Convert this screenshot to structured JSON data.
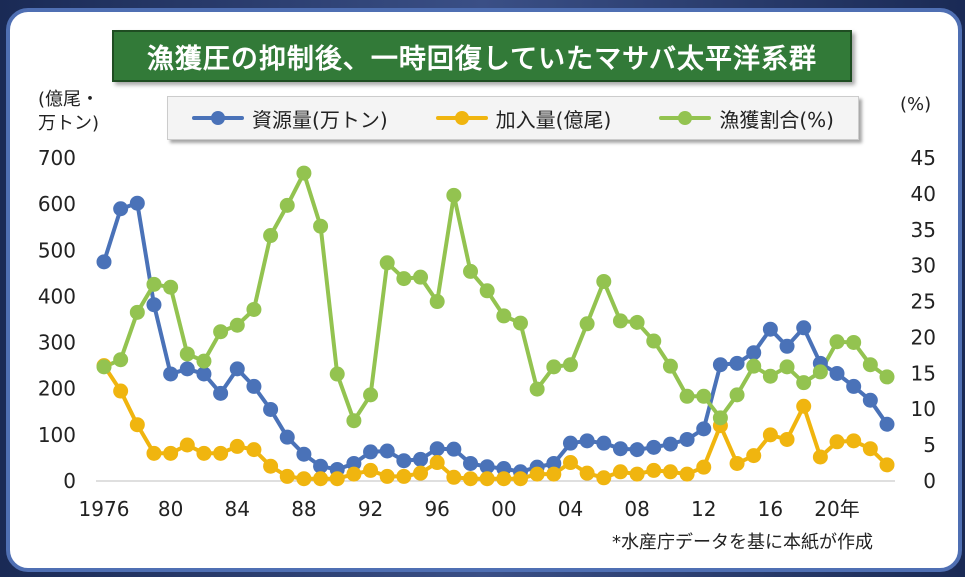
{
  "title": "漁獲圧の抑制後、一時回復していたマサバ太平洋系群",
  "left_axis_unit": [
    "(億尾・",
    "万トン)"
  ],
  "right_axis_unit": "(%)",
  "source_note": "*水産庁データを基に本紙が作成",
  "legend": [
    {
      "label": "資源量(万トン)",
      "color": "#4a72b8"
    },
    {
      "label": "加入量(億尾)",
      "color": "#f0b50f"
    },
    {
      "label": "漁獲割合(%)",
      "color": "#93c350"
    }
  ],
  "chart_data": {
    "type": "line",
    "title": "漁獲圧の抑制後、一時回復していたマサバ太平洋系群",
    "x": [
      1976,
      1977,
      1978,
      1979,
      1980,
      1981,
      1982,
      1983,
      1984,
      1985,
      1986,
      1987,
      1988,
      1989,
      1990,
      1991,
      1992,
      1993,
      1994,
      1995,
      1996,
      1997,
      1998,
      1999,
      2000,
      2001,
      2002,
      2003,
      2004,
      2005,
      2006,
      2007,
      2008,
      2009,
      2010,
      2011,
      2012,
      2013,
      2014,
      2015,
      2016,
      2017,
      2018,
      2019,
      2020,
      2021,
      2022,
      2023
    ],
    "x_tick_labels": [
      {
        "x": 1976,
        "label": "1976"
      },
      {
        "x": 1980,
        "label": "80"
      },
      {
        "x": 1984,
        "label": "84"
      },
      {
        "x": 1988,
        "label": "88"
      },
      {
        "x": 1992,
        "label": "92"
      },
      {
        "x": 1996,
        "label": "96"
      },
      {
        "x": 2000,
        "label": "00"
      },
      {
        "x": 2004,
        "label": "04"
      },
      {
        "x": 2008,
        "label": "08"
      },
      {
        "x": 2012,
        "label": "12"
      },
      {
        "x": 2016,
        "label": "16"
      },
      {
        "x": 2020,
        "label": "20年"
      }
    ],
    "y_left": {
      "range": [
        0,
        700
      ],
      "ticks": [
        0,
        100,
        200,
        300,
        400,
        500,
        600,
        700
      ]
    },
    "y_right": {
      "range": [
        0,
        45
      ],
      "ticks": [
        0,
        5,
        10,
        15,
        20,
        25,
        30,
        35,
        40,
        45
      ]
    },
    "grid": false,
    "series": [
      {
        "name": "資源量(万トン)",
        "axis": "left",
        "color": "#4a72b8",
        "values": [
          475,
          590,
          602,
          382,
          232,
          243,
          232,
          190,
          243,
          205,
          155,
          95,
          58,
          32,
          25,
          38,
          63,
          65,
          44,
          47,
          70,
          69,
          38,
          31,
          27,
          20,
          30,
          38,
          82,
          87,
          82,
          70,
          68,
          73,
          80,
          90,
          113,
          252,
          255,
          278,
          329,
          292,
          332,
          255,
          233,
          205,
          175,
          123
        ]
      },
      {
        "name": "加入量(億尾)",
        "axis": "left",
        "color": "#f0b50f",
        "values": [
          250,
          195,
          122,
          60,
          60,
          78,
          60,
          60,
          75,
          68,
          32,
          10,
          5,
          5,
          5,
          15,
          23,
          10,
          10,
          17,
          40,
          8,
          5,
          5,
          5,
          5,
          15,
          15,
          40,
          17,
          7,
          20,
          15,
          23,
          20,
          15,
          30,
          120,
          38,
          55,
          100,
          90,
          162,
          52,
          85,
          87,
          70,
          35
        ]
      },
      {
        "name": "漁獲割合(%)",
        "axis": "right",
        "color": "#93c350",
        "values": [
          15.9,
          16.9,
          23.5,
          27.4,
          27.0,
          17.7,
          16.7,
          20.8,
          21.7,
          23.9,
          34.2,
          38.4,
          42.9,
          35.5,
          14.9,
          8.4,
          12.0,
          30.4,
          28.2,
          28.4,
          25.0,
          39.8,
          29.2,
          26.5,
          23.0,
          22.0,
          12.8,
          15.9,
          16.2,
          21.9,
          27.8,
          22.3,
          22.1,
          19.5,
          16.0,
          11.8,
          11.8,
          8.8,
          12.0,
          16.0,
          14.6,
          15.9,
          13.7,
          15.2,
          19.4,
          19.3,
          16.2,
          14.5
        ]
      }
    ]
  }
}
